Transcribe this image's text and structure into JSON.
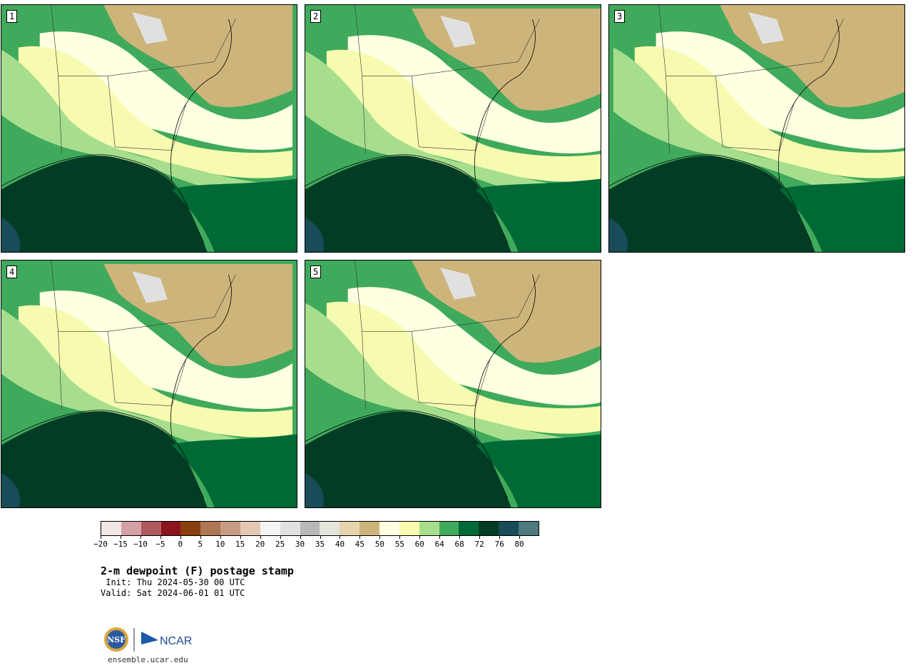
{
  "panels": [
    {
      "label": "1"
    },
    {
      "label": "2"
    },
    {
      "label": "3"
    },
    {
      "label": "4"
    },
    {
      "label": "5"
    }
  ],
  "colorbar": {
    "colors": [
      "#f3e6e6",
      "#d4a2a6",
      "#b05a5e",
      "#8c1420",
      "#8a4010",
      "#ad7654",
      "#c89c82",
      "#e4c8b4",
      "#f4f4f4",
      "#e0e0e0",
      "#b8b8b8",
      "#e4e4d8",
      "#e6d4ac",
      "#cdb47a",
      "#ffffe2",
      "#f6fbb0",
      "#a7de8e",
      "#40aa5c",
      "#006a36",
      "#033c25",
      "#184c58",
      "#4c7a80"
    ],
    "ticks": [
      "−20",
      "−15",
      "−10",
      "−5",
      "0",
      "5",
      "10",
      "15",
      "20",
      "25",
      "30",
      "35",
      "40",
      "45",
      "50",
      "55",
      "60",
      "64",
      "68",
      "72",
      "76",
      "80"
    ]
  },
  "title": "2-m dewpoint (F) postage stamp",
  "init": " Init: Thu 2024-05-30 00 UTC",
  "valid": "Valid: Sat 2024-06-01 01 UTC",
  "logos": {
    "nsf": "NSF",
    "ncar": "NCAR"
  },
  "site": "ensemble.ucar.edu"
}
